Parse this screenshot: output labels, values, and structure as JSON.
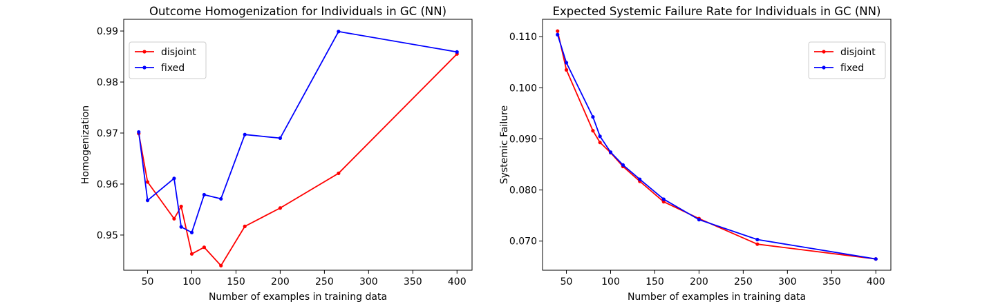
{
  "chart_data": [
    {
      "type": "line",
      "title": "Outcome Homogenization for Individuals in GC (NN)",
      "xlabel": "Number of examples in training data",
      "ylabel": "Homogenization",
      "xlim": [
        23,
        417
      ],
      "ylim": [
        0.9431,
        0.9923
      ],
      "xticks": [
        50,
        100,
        150,
        200,
        250,
        300,
        350,
        400
      ],
      "xtick_labels": [
        "50",
        "100",
        "150",
        "200",
        "250",
        "300",
        "350",
        "400"
      ],
      "yticks": [
        0.95,
        0.96,
        0.97,
        0.98,
        0.99
      ],
      "ytick_labels": [
        "0.95",
        "0.96",
        "0.97",
        "0.98",
        "0.99"
      ],
      "grid": false,
      "legend": "top-left",
      "series": [
        {
          "name": "disjoint",
          "color": "#ff0000",
          "x": [
            40,
            50,
            80,
            88,
            100,
            114,
            133,
            160,
            200,
            266,
            400
          ],
          "y": [
            0.9699,
            0.9604,
            0.9532,
            0.9556,
            0.9463,
            0.9476,
            0.944,
            0.9517,
            0.9553,
            0.9621,
            0.9855
          ]
        },
        {
          "name": "fixed",
          "color": "#0000ff",
          "x": [
            40,
            50,
            80,
            88,
            100,
            114,
            133,
            160,
            200,
            266,
            400
          ],
          "y": [
            0.9702,
            0.9568,
            0.9611,
            0.9516,
            0.9505,
            0.9579,
            0.9571,
            0.9697,
            0.969,
            0.9899,
            0.9859
          ]
        }
      ]
    },
    {
      "type": "line",
      "title": "Expected Systemic Failure Rate for Individuals in GC (NN)",
      "xlabel": "Number of examples in training data",
      "ylabel": "Systemic Failure",
      "xlim": [
        23,
        417
      ],
      "ylim": [
        0.0643,
        0.1134
      ],
      "xticks": [
        50,
        100,
        150,
        200,
        250,
        300,
        350,
        400
      ],
      "xtick_labels": [
        "50",
        "100",
        "150",
        "200",
        "250",
        "300",
        "350",
        "400"
      ],
      "yticks": [
        0.07,
        0.08,
        0.09,
        0.1,
        0.11
      ],
      "ytick_labels": [
        "0.070",
        "0.080",
        "0.090",
        "0.100",
        "0.110"
      ],
      "grid": false,
      "legend": "top-right",
      "series": [
        {
          "name": "disjoint",
          "color": "#ff0000",
          "x": [
            40,
            50,
            80,
            88,
            100,
            114,
            133,
            160,
            200,
            266,
            400
          ],
          "y": [
            0.1111,
            0.1035,
            0.0916,
            0.0893,
            0.0873,
            0.0846,
            0.0817,
            0.0777,
            0.0744,
            0.0694,
            0.0665
          ]
        },
        {
          "name": "fixed",
          "color": "#0000ff",
          "x": [
            40,
            50,
            80,
            88,
            100,
            114,
            133,
            160,
            200,
            266,
            400
          ],
          "y": [
            0.1104,
            0.1049,
            0.0943,
            0.0905,
            0.0874,
            0.0849,
            0.0821,
            0.0782,
            0.0742,
            0.0703,
            0.0665
          ]
        }
      ]
    }
  ]
}
